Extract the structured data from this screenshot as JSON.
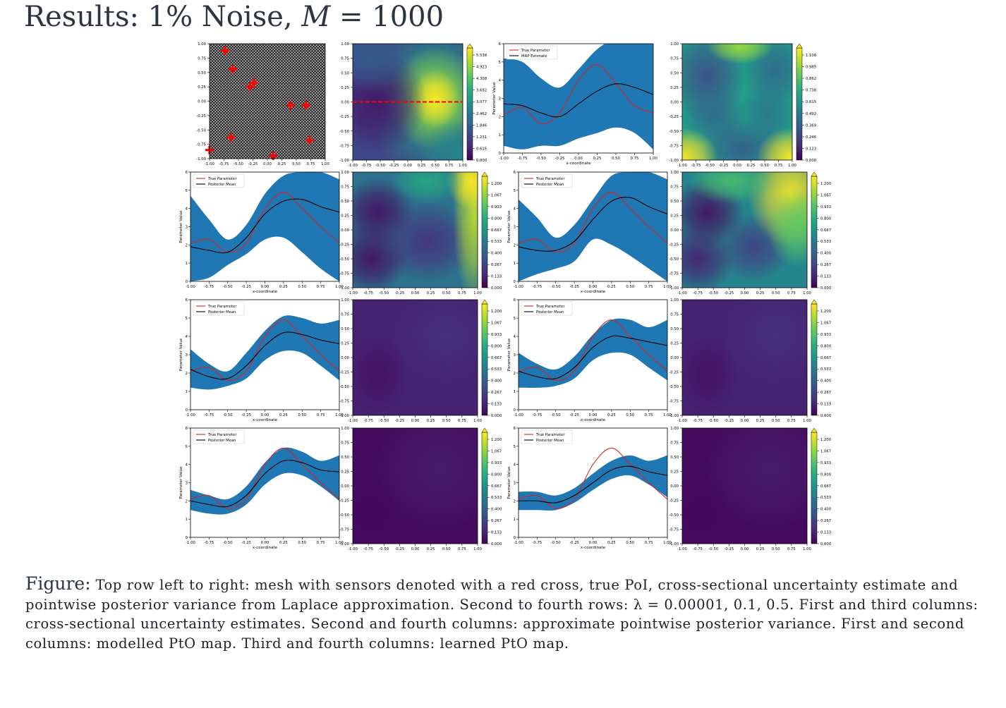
{
  "slide": {
    "title_prefix": "Results: 1% Noise, ",
    "title_math_var": "M",
    "title_math_rest": " = 1000"
  },
  "caption": {
    "lead": "Figure:",
    "text": "Top row left to right: mesh with sensors denoted with a red cross, true PoI, cross-sectional uncertainty estimate and pointwise posterior variance from Laplace approximation. Second to fourth rows: λ = 0.00001, 0.1, 0.5. First and third columns: cross-sectional uncertainty estimates. Second and fourth columns: approximate pointwise posterior variance. First and second columns: modelled PtO map. Third and fourth columns: learned PtO map."
  },
  "colors": {
    "band": "#1f77b4",
    "true_line": "#d62728",
    "mean_line": "#000000",
    "sensor": "#ff0000",
    "viridis_low": "#440154",
    "viridis_high": "#fde725"
  },
  "axes": {
    "map_ticks": [
      "-1.00",
      "-0.75",
      "-0.50",
      "-0.25",
      "0.00",
      "0.25",
      "0.50",
      "0.75",
      "1.00"
    ],
    "line_xticks": [
      "-1.00",
      "-0.75",
      "-0.50",
      "-0.25",
      "0.00",
      "0.25",
      "0.50",
      "0.75",
      "1.00"
    ],
    "line_yticks": [
      "0",
      "1",
      "2",
      "3",
      "4",
      "5",
      "6"
    ],
    "xlabel": "x-coordinate",
    "ylabel": "Parameter Value"
  },
  "colorbars": {
    "true_poi": [
      "0.000",
      "0.615",
      "1.231",
      "1.846",
      "2.462",
      "3.077",
      "3.692",
      "4.308",
      "4.923",
      "5.538"
    ],
    "laplace_var": [
      "0.000",
      "0.123",
      "0.246",
      "0.369",
      "0.492",
      "0.615",
      "0.738",
      "0.862",
      "0.985",
      "1.108"
    ],
    "approx_var": [
      "0.000",
      "0.133",
      "0.267",
      "0.400",
      "0.533",
      "0.667",
      "0.800",
      "0.933",
      "1.067",
      "1.200"
    ]
  },
  "legends": {
    "true": "True Parameter",
    "map": "MAP Estimate",
    "mean": "Posterior Mean"
  },
  "sensors": [
    {
      "x": -0.73,
      "y": 0.88
    },
    {
      "x": -0.6,
      "y": 0.56
    },
    {
      "x": -0.23,
      "y": 0.32
    },
    {
      "x": -0.3,
      "y": 0.25
    },
    {
      "x": 0.4,
      "y": -0.07
    },
    {
      "x": 0.67,
      "y": -0.07
    },
    {
      "x": -0.63,
      "y": -0.63
    },
    {
      "x": 0.73,
      "y": -0.68
    },
    {
      "x": -1.0,
      "y": -0.85
    },
    {
      "x": 0.1,
      "y": -0.95
    }
  ],
  "chart_data": [
    {
      "type": "line",
      "panel": "Laplace approximation cross-section",
      "xlabel": "x-coordinate",
      "ylabel": "Parameter Value",
      "xlim": [
        -1,
        1
      ],
      "ylim": [
        0,
        6
      ],
      "legend": "top-left",
      "x": [
        -1,
        -0.75,
        -0.5,
        -0.25,
        0,
        0.25,
        0.5,
        0.75,
        1
      ],
      "series": [
        {
          "name": "True Parameter",
          "values": [
            2.1,
            2.5,
            1.6,
            2.2,
            4.0,
            4.85,
            3.8,
            2.6,
            2.2
          ]
        },
        {
          "name": "MAP Estimate",
          "values": [
            2.7,
            2.6,
            2.2,
            2.0,
            2.7,
            3.4,
            3.8,
            3.6,
            3.2
          ]
        }
      ],
      "band_upper": [
        5.2,
        5.0,
        4.1,
        3.6,
        4.6,
        5.7,
        6.3,
        6.5,
        6.6
      ],
      "band_lower": [
        0.4,
        0.2,
        0.4,
        0.4,
        0.8,
        1.1,
        1.4,
        1.1,
        0.2
      ]
    },
    {
      "type": "line",
      "panel": "lambda=0.00001 modelled PtO",
      "xlabel": "x-coordinate",
      "ylabel": "Parameter Value",
      "xlim": [
        -1,
        1
      ],
      "ylim": [
        0,
        6
      ],
      "legend": "top-left",
      "x": [
        -1,
        -0.75,
        -0.5,
        -0.25,
        0,
        0.25,
        0.5,
        0.75,
        1
      ],
      "series": [
        {
          "name": "True Parameter",
          "values": [
            2.1,
            2.3,
            1.6,
            2.1,
            4.0,
            4.9,
            4.0,
            3.0,
            2.1
          ]
        },
        {
          "name": "Posterior Mean",
          "values": [
            1.9,
            1.7,
            1.6,
            2.4,
            3.7,
            4.4,
            4.5,
            4.1,
            3.8
          ]
        }
      ],
      "band_upper": [
        4.7,
        3.4,
        2.3,
        3.1,
        4.8,
        5.8,
        6.0,
        6.0,
        5.6
      ],
      "band_lower": [
        0.0,
        0.2,
        0.9,
        1.5,
        2.3,
        2.4,
        1.6,
        0.7,
        0.0
      ]
    },
    {
      "type": "line",
      "panel": "lambda=0.00001 learned PtO",
      "xlabel": "x-coordinate",
      "ylabel": "Parameter Value",
      "xlim": [
        -1,
        1
      ],
      "ylim": [
        0,
        6
      ],
      "legend": "top-left",
      "x": [
        -1,
        -0.75,
        -0.5,
        -0.25,
        0,
        0.25,
        0.5,
        0.75,
        1
      ],
      "series": [
        {
          "name": "True Parameter",
          "values": [
            2.1,
            2.3,
            1.6,
            2.1,
            4.0,
            4.9,
            4.0,
            3.0,
            2.1
          ]
        },
        {
          "name": "Posterior Mean",
          "values": [
            1.9,
            1.7,
            1.7,
            2.2,
            3.4,
            4.4,
            4.6,
            4.1,
            3.7
          ]
        }
      ],
      "band_upper": [
        4.5,
        3.5,
        2.4,
        3.1,
        4.5,
        5.8,
        6.0,
        6.0,
        5.6
      ],
      "band_lower": [
        0.0,
        0.4,
        0.7,
        1.1,
        2.3,
        2.0,
        1.4,
        0.7,
        0.0
      ]
    },
    {
      "type": "line",
      "panel": "lambda=0.1 modelled PtO",
      "xlabel": "x-coordinate",
      "ylabel": "Parameter Value",
      "xlim": [
        -1,
        1
      ],
      "ylim": [
        0,
        6
      ],
      "legend": "top-left",
      "x": [
        -1,
        -0.75,
        -0.5,
        -0.25,
        0,
        0.25,
        0.5,
        0.75,
        1
      ],
      "series": [
        {
          "name": "True Parameter",
          "values": [
            2.1,
            2.3,
            1.6,
            2.1,
            4.0,
            4.9,
            4.0,
            3.0,
            2.1
          ]
        },
        {
          "name": "Posterior Mean",
          "values": [
            2.2,
            1.8,
            1.7,
            2.4,
            3.5,
            4.2,
            4.1,
            3.8,
            3.6
          ]
        }
      ],
      "band_upper": [
        3.3,
        2.5,
        2.1,
        3.1,
        4.3,
        5.1,
        5.0,
        4.7,
        4.9
      ],
      "band_lower": [
        1.2,
        1.1,
        1.3,
        1.7,
        2.7,
        3.2,
        3.1,
        2.4,
        1.6
      ]
    },
    {
      "type": "line",
      "panel": "lambda=0.1 learned PtO",
      "xlabel": "x-coordinate",
      "ylabel": "Parameter Value",
      "xlim": [
        -1,
        1
      ],
      "ylim": [
        0,
        6
      ],
      "legend": "top-left",
      "x": [
        -1,
        -0.75,
        -0.5,
        -0.25,
        0,
        0.25,
        0.5,
        0.75,
        1
      ],
      "series": [
        {
          "name": "True Parameter",
          "values": [
            2.1,
            2.3,
            1.6,
            2.1,
            4.0,
            4.9,
            4.0,
            3.0,
            2.1
          ]
        },
        {
          "name": "Posterior Mean",
          "values": [
            2.1,
            1.8,
            1.7,
            2.3,
            3.4,
            4.0,
            3.9,
            3.7,
            3.5
          ]
        }
      ],
      "band_upper": [
        3.1,
        2.5,
        2.2,
        2.9,
        4.1,
        4.9,
        4.9,
        4.5,
        4.9
      ],
      "band_lower": [
        1.2,
        1.2,
        1.3,
        1.7,
        2.7,
        3.1,
        3.0,
        2.3,
        1.6
      ]
    },
    {
      "type": "line",
      "panel": "lambda=0.5 modelled PtO",
      "xlabel": "x-coordinate",
      "ylabel": "Parameter Value",
      "xlim": [
        -1,
        1
      ],
      "ylim": [
        0,
        6
      ],
      "legend": "top-left",
      "x": [
        -1,
        -0.75,
        -0.5,
        -0.25,
        0,
        0.25,
        0.5,
        0.75,
        1
      ],
      "series": [
        {
          "name": "True Parameter",
          "values": [
            2.1,
            2.3,
            1.6,
            2.1,
            4.0,
            4.9,
            4.0,
            3.0,
            2.1
          ]
        },
        {
          "name": "Posterior Mean",
          "values": [
            2.0,
            1.8,
            1.7,
            2.3,
            3.5,
            4.2,
            4.1,
            3.7,
            3.6
          ]
        }
      ],
      "band_upper": [
        2.6,
        2.3,
        2.1,
        2.8,
        4.1,
        4.9,
        4.7,
        4.2,
        4.5
      ],
      "band_lower": [
        1.5,
        1.3,
        1.3,
        1.8,
        2.9,
        3.5,
        3.4,
        2.8,
        2.0
      ]
    },
    {
      "type": "line",
      "panel": "lambda=0.5 learned PtO",
      "xlabel": "x-coordinate",
      "ylabel": "Parameter Value",
      "xlim": [
        -1,
        1
      ],
      "ylim": [
        0,
        6
      ],
      "legend": "top-left",
      "x": [
        -1,
        -0.75,
        -0.5,
        -0.25,
        0,
        0.25,
        0.5,
        0.75,
        1
      ],
      "series": [
        {
          "name": "True Parameter",
          "values": [
            2.1,
            2.3,
            1.6,
            2.1,
            4.0,
            4.9,
            4.0,
            3.0,
            2.1
          ]
        },
        {
          "name": "Posterior Mean",
          "values": [
            2.0,
            2.0,
            1.9,
            2.3,
            3.0,
            3.7,
            3.9,
            3.6,
            3.4
          ]
        }
      ],
      "band_upper": [
        2.5,
        2.5,
        2.3,
        2.7,
        3.5,
        4.2,
        4.5,
        4.2,
        4.5
      ],
      "band_lower": [
        1.5,
        1.5,
        1.5,
        1.9,
        2.6,
        3.2,
        3.4,
        2.9,
        2.2
      ]
    }
  ]
}
